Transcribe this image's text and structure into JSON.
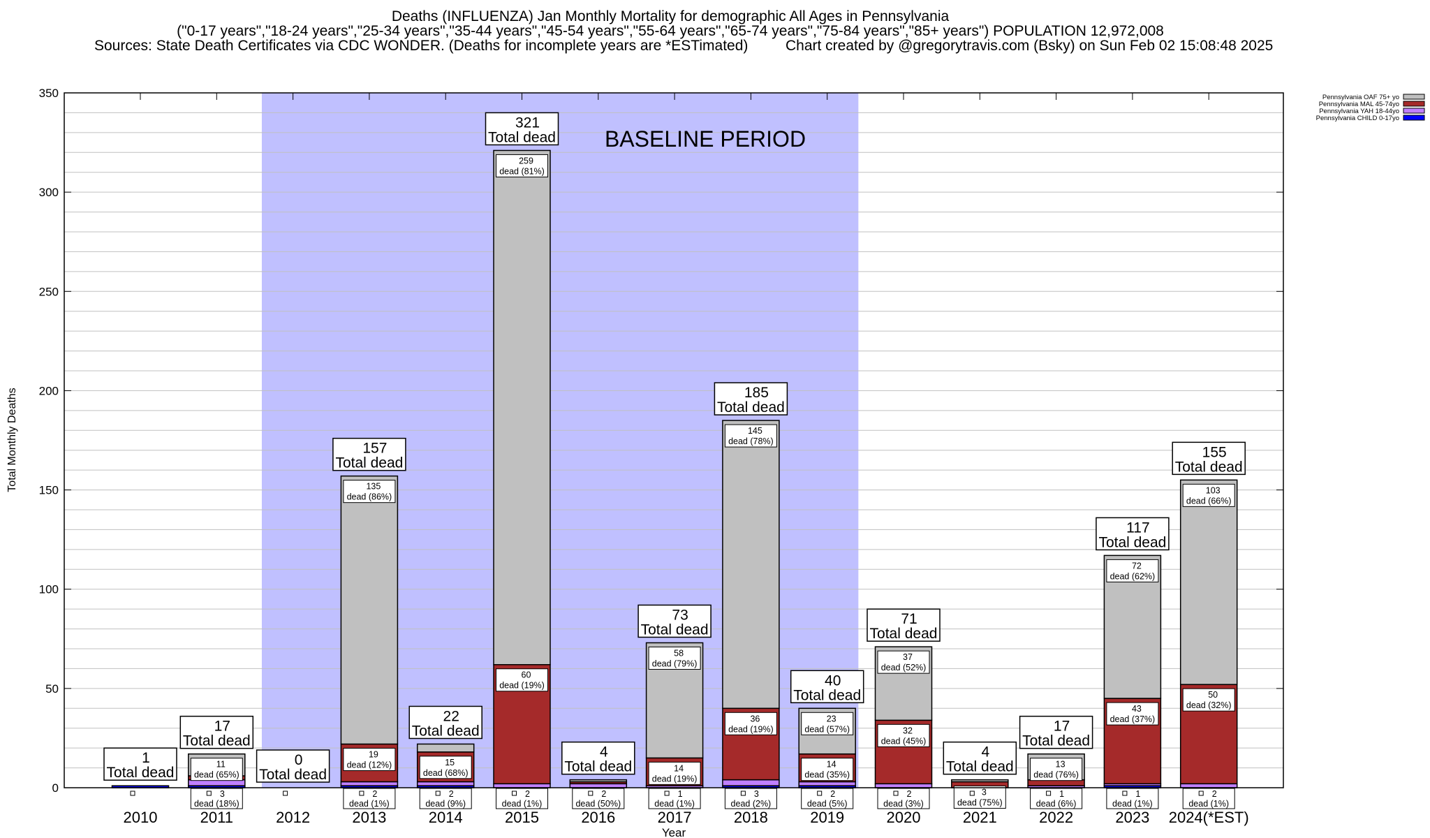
{
  "header": {
    "title": "Deaths (INFLUENZA) Jan Monthly Mortality for demographic All Ages in Pennsylvania",
    "subtitle": "(\"0-17 years\",\"18-24 years\",\"25-34 years\",\"35-44 years\",\"45-54 years\",\"55-64 years\",\"65-74 years\",\"75-84 years\",\"85+ years\") POPULATION 12,972,008",
    "sources": "Sources: State Death Certificates via CDC WONDER. (Deaths for incomplete years are *ESTimated)",
    "credit": "Chart created by @gregorytravis.com (Bsky) on Sun Feb 02 15:08:48 2025"
  },
  "chart_data": {
    "type": "bar",
    "stacked": true,
    "xlabel": "Year",
    "ylabel": "Total Monthly Deaths",
    "ylim": [
      0,
      350
    ],
    "yticks": [
      0,
      50,
      100,
      150,
      200,
      250,
      300,
      350
    ],
    "grid": true,
    "legend_placement": "top-right",
    "total_label": "Total dead",
    "segment_label": "dead",
    "annotation": {
      "text": "BASELINE PERIOD",
      "from": "2012",
      "to": "2019",
      "color": "#c0c0ff"
    },
    "categories": [
      "2010",
      "2011",
      "2012",
      "2013",
      "2014",
      "2015",
      "2016",
      "2017",
      "2018",
      "2019",
      "2020",
      "2021",
      "2022",
      "2023",
      "2024(*EST)"
    ],
    "totals": [
      1,
      17,
      0,
      157,
      22,
      321,
      4,
      73,
      185,
      40,
      71,
      4,
      17,
      117,
      155
    ],
    "series": [
      {
        "name": "Pennsylvania CHILD 0-17yo",
        "color": "#0000ff",
        "values": [
          1,
          1,
          0,
          1,
          1,
          0,
          0,
          0,
          1,
          1,
          0,
          0,
          0,
          1,
          0
        ]
      },
      {
        "name": "Pennsylvania YAH 18-44yo",
        "color": "#c080ff",
        "values": [
          0,
          3,
          0,
          2,
          2,
          2,
          2,
          1,
          3,
          2,
          2,
          0,
          1,
          1,
          2
        ]
      },
      {
        "name": "Pennsylvania MAL 45-74yo",
        "color": "#a52a2a",
        "values": [
          0,
          2,
          0,
          19,
          15,
          60,
          1,
          14,
          36,
          14,
          32,
          3,
          3,
          43,
          50
        ]
      },
      {
        "name": "Pennsylvania OAF 75+ yo",
        "color": "#c0c0c0",
        "values": [
          0,
          11,
          0,
          135,
          4,
          259,
          1,
          58,
          145,
          23,
          37,
          1,
          13,
          72,
          103
        ]
      }
    ],
    "segment_percents": {
      "oaf": [
        "",
        "65%",
        "",
        "86%",
        "",
        "81%",
        "",
        "79%",
        "78%",
        "57%",
        "52%",
        "",
        "76%",
        "62%",
        "66%"
      ],
      "mal": [
        "",
        "",
        "",
        "12%",
        "68%",
        "19%",
        "",
        "19%",
        "19%",
        "35%",
        "45%",
        "75%",
        "",
        "37%",
        "32%"
      ],
      "yah": [
        "",
        "18%",
        "",
        "1%",
        "9%",
        "1%",
        "50%",
        "1%",
        "2%",
        "5%",
        "3%",
        "",
        "6%",
        "1%",
        "1%"
      ]
    }
  }
}
